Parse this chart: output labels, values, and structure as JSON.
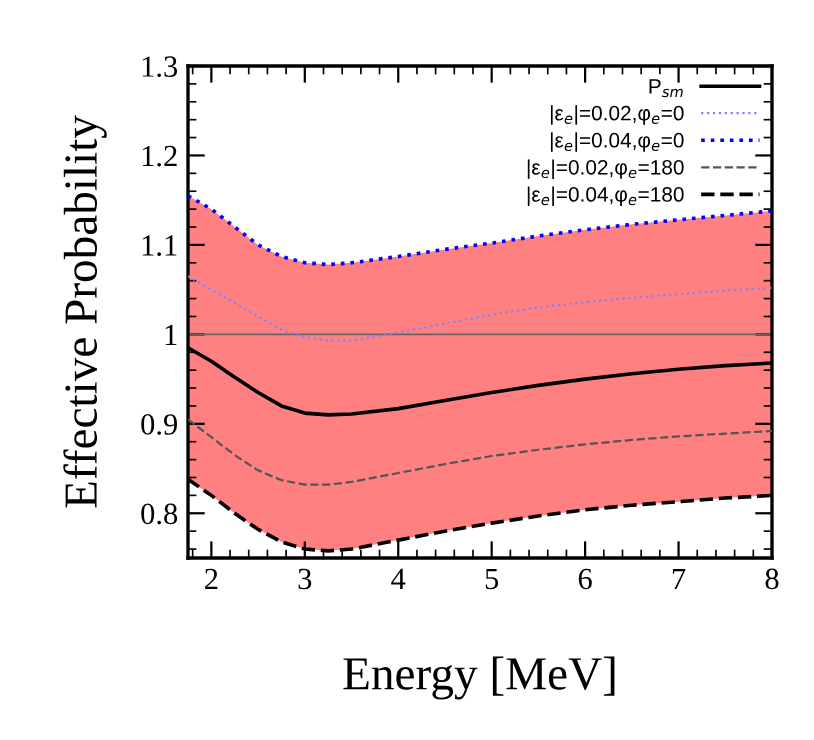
{
  "chart_data": {
    "type": "line",
    "xlabel": "Energy [MeV]",
    "ylabel": "Effective Probability",
    "x": [
      1.75,
      2,
      2.25,
      2.5,
      2.75,
      3,
      3.25,
      3.5,
      4,
      4.5,
      5,
      5.5,
      6,
      6.5,
      7,
      7.5,
      8
    ],
    "series": [
      {
        "name": "P$_{sm}$",
        "color": "#000000",
        "line_style": "solid",
        "values": [
          0.985,
          0.97,
          0.952,
          0.935,
          0.92,
          0.912,
          0.91,
          0.911,
          0.917,
          0.926,
          0.935,
          0.943,
          0.95,
          0.956,
          0.961,
          0.965,
          0.968
        ],
        "lower": [
          0.838,
          0.82,
          0.8,
          0.782,
          0.768,
          0.76,
          0.758,
          0.76,
          0.77,
          0.78,
          0.789,
          0.797,
          0.804,
          0.809,
          0.813,
          0.817,
          0.82
        ],
        "upper": [
          1.155,
          1.14,
          1.12,
          1.1,
          1.087,
          1.08,
          1.078,
          1.08,
          1.087,
          1.095,
          1.102,
          1.11,
          1.117,
          1.123,
          1.128,
          1.133,
          1.138
        ]
      },
      {
        "name": "|ε$_{e}$|=0.02,φ$_{e}$=0",
        "color": "#8080ff",
        "line_style": "dotted",
        "values": [
          1.065,
          1.05,
          1.035,
          1.02,
          1.005,
          0.997,
          0.993,
          0.993,
          1.002,
          1.012,
          1.022,
          1.03,
          1.036,
          1.041,
          1.045,
          1.049,
          1.052
        ]
      },
      {
        "name": "|ε$_{e}$|=0.04,φ$_{e}$=0",
        "color": "#0000ff",
        "line_style": "dotted",
        "values": [
          1.155,
          1.14,
          1.12,
          1.1,
          1.087,
          1.08,
          1.078,
          1.08,
          1.087,
          1.095,
          1.102,
          1.11,
          1.117,
          1.123,
          1.128,
          1.133,
          1.138
        ]
      },
      {
        "name": "|ε$_{e}$|=0.02,φ$_{e}$=180",
        "color": "#555555",
        "line_style": "dashed",
        "values": [
          0.905,
          0.885,
          0.865,
          0.848,
          0.837,
          0.832,
          0.832,
          0.835,
          0.845,
          0.855,
          0.864,
          0.871,
          0.877,
          0.882,
          0.886,
          0.889,
          0.892
        ]
      },
      {
        "name": "|ε$_{e}$|=0.04,φ$_{e}$=180",
        "color": "#000000",
        "line_style": "dashed",
        "values": [
          0.838,
          0.82,
          0.8,
          0.782,
          0.768,
          0.76,
          0.758,
          0.76,
          0.77,
          0.78,
          0.789,
          0.797,
          0.804,
          0.809,
          0.813,
          0.817,
          0.82
        ]
      }
    ],
    "ref_lines": [
      {
        "axis": "y",
        "value": 1,
        "color": "#666666",
        "line_style": "solid"
      }
    ],
    "xlim": [
      1.75,
      8
    ],
    "xticks": [
      2,
      3,
      4,
      5,
      6,
      7,
      8
    ],
    "ylim": [
      0.75,
      1.3
    ],
    "yticks": [
      0.8,
      0.9,
      1,
      1.1,
      1.2,
      1.3
    ],
    "legend": "top right",
    "grid": false,
    "marker": "none"
  }
}
